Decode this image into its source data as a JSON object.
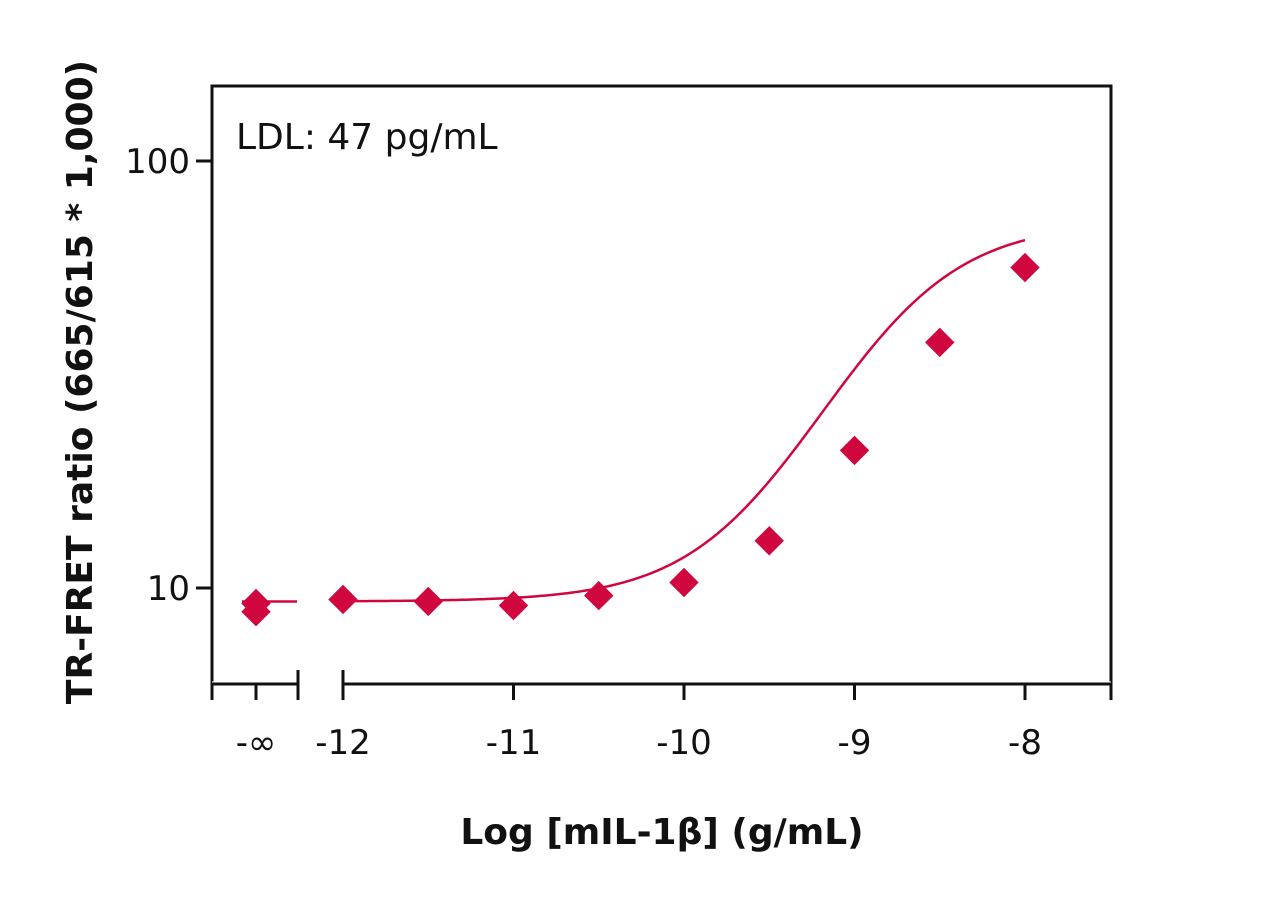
{
  "chart_data": {
    "type": "scatter",
    "xlabel": "Log [mIL-1β] (g/mL)",
    "ylabel": "TR-FRET ratio (665/615 * 1,000)",
    "annotation": "LDL: 47 pg/mL",
    "y_scale": "log",
    "ylim": [
      6.3,
      158
    ],
    "xlim": [
      -12.75,
      -7.5
    ],
    "y_ticks": [
      {
        "value": 100,
        "label": "100"
      },
      {
        "value": 10,
        "label": "10"
      }
    ],
    "x_ticks": [
      {
        "value": "-∞",
        "label": "-∞"
      },
      {
        "value": -12,
        "label": "-12"
      },
      {
        "value": -11,
        "label": "-11"
      },
      {
        "value": -10,
        "label": "-10"
      },
      {
        "value": -9,
        "label": "-9"
      },
      {
        "value": -8,
        "label": "-8"
      }
    ],
    "axis_break": "between -∞ and -12",
    "grid": false,
    "marker": "diamond",
    "color": "#d0073f",
    "blank_points": [
      {
        "x": "-∞",
        "y": 9.2
      },
      {
        "x": "-∞",
        "y": 8.8
      }
    ],
    "series": [
      {
        "x": [
          -12,
          -11.5,
          -11,
          -10.5,
          -10,
          -9.5,
          -9,
          -8.5,
          -8
        ],
        "y": [
          9.4,
          9.3,
          9.1,
          9.6,
          10.3,
          12.9,
          21.0,
          37.6,
          56.3
        ]
      }
    ],
    "fit_curve": {
      "type": "4PL sigmoid",
      "bottom": 9.3,
      "top": 72.0,
      "log_ec50": -8.8,
      "hill": 1.15,
      "baseline_value": 9.3
    }
  }
}
